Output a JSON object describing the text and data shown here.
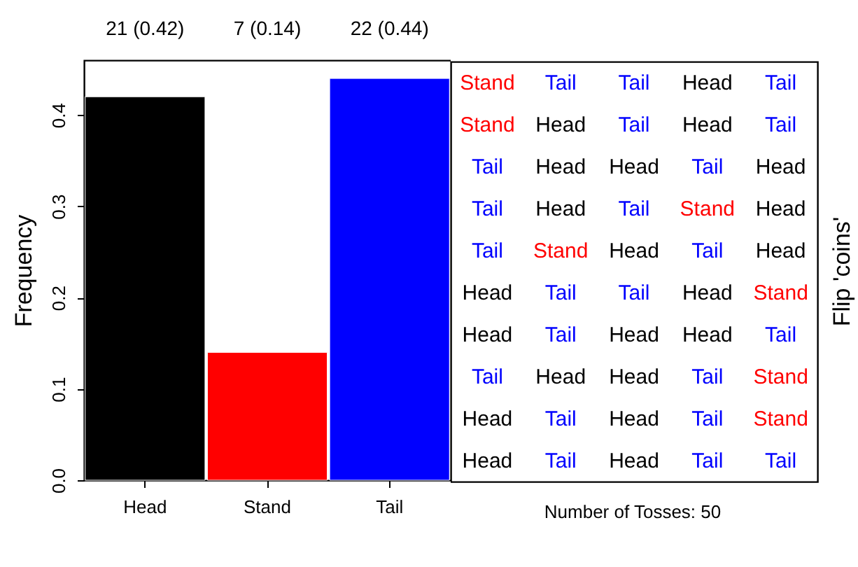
{
  "chart_data": [
    {
      "type": "bar",
      "categories": [
        "Head",
        "Stand",
        "Tail"
      ],
      "values": [
        0.42,
        0.14,
        0.44
      ],
      "colors": [
        "#000000",
        "#ff0000",
        "#0000ff"
      ],
      "value_labels": [
        "21 (0.42)",
        "7 (0.14)",
        "22 (0.44)"
      ],
      "ylabel": "Frequency",
      "ylim": [
        0,
        0.46
      ],
      "yticks": [
        {
          "value": 0,
          "label": "0.0"
        },
        0.1,
        0.2,
        0.3,
        0.4
      ]
    },
    {
      "type": "other",
      "xlabel": "Number of Tosses: 50",
      "ylabel": "Flip 'coins'",
      "annotations": [
        "Stand",
        "Tail",
        "Tail",
        "Head",
        "Tail",
        "Stand",
        "Head",
        "Tail",
        "Head",
        "Tail",
        "Tail",
        "Head",
        "Head",
        "Tail",
        "Head",
        "Tail",
        "Head",
        "Tail",
        "Stand",
        "Head",
        "Tail",
        "Stand",
        "Head",
        "Tail",
        "Head",
        "Head",
        "Tail",
        "Tail",
        "Head",
        "Stand",
        "Head",
        "Tail",
        "Head",
        "Head",
        "Tail",
        "Tail",
        "Head",
        "Head",
        "Tail",
        "Stand",
        "Head",
        "Tail",
        "Head",
        "Tail",
        "Stand",
        "Head",
        "Tail",
        "Head",
        "Tail",
        "Tail"
      ]
    }
  ]
}
